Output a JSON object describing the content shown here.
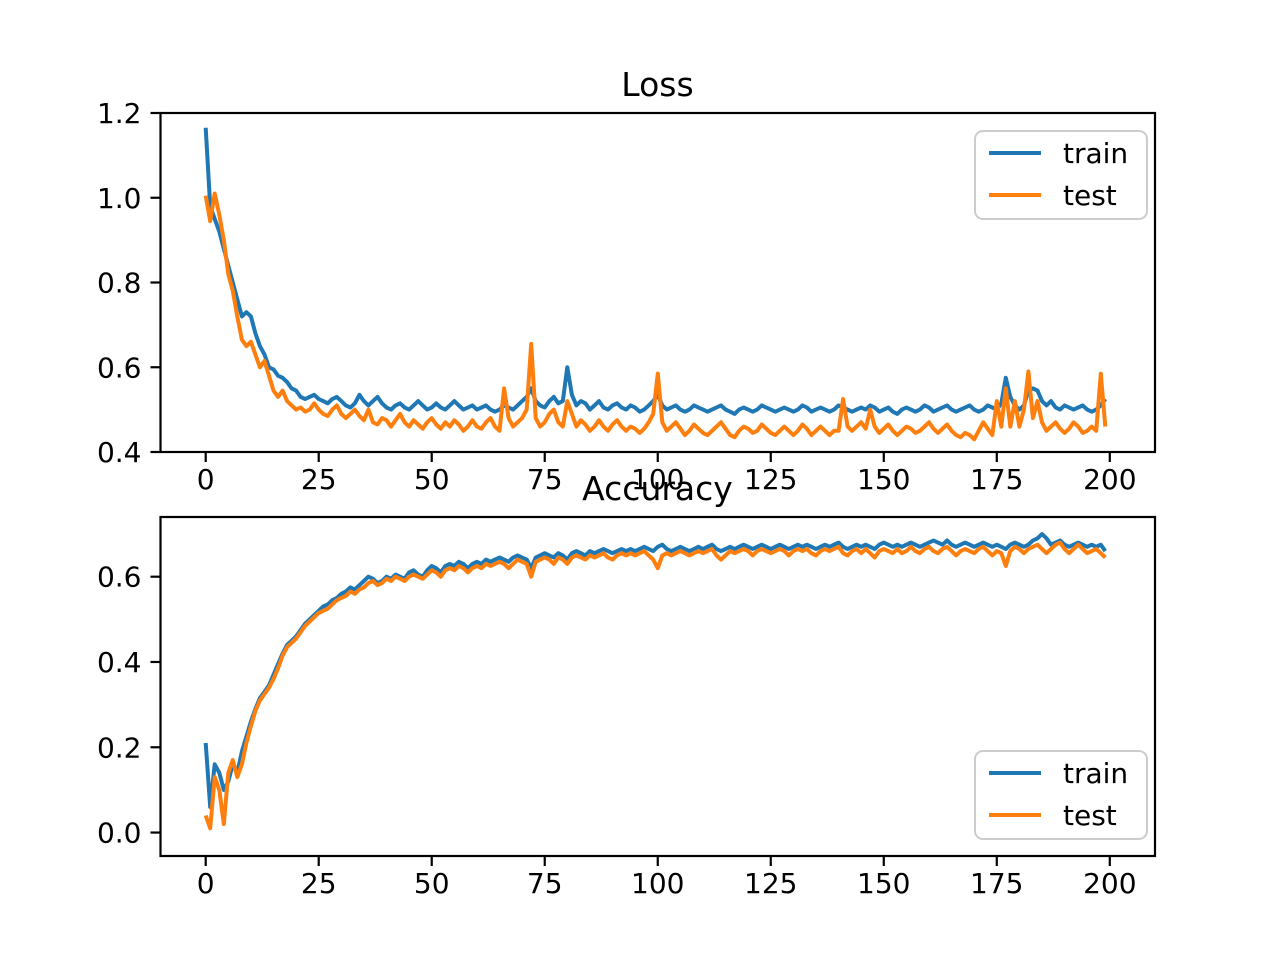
{
  "figure": {
    "background": "#ffffff",
    "axis_color": "#000000",
    "legend_border_color": "#cccccc"
  },
  "chart_data": [
    {
      "id": "loss",
      "type": "line",
      "title": "Loss",
      "xlabel": "",
      "ylabel": "",
      "grid": false,
      "xlim": [
        -10,
        210
      ],
      "ylim": [
        0.4,
        1.2
      ],
      "xticks": [
        0,
        25,
        50,
        75,
        100,
        125,
        150,
        175,
        200
      ],
      "xtick_labels": [
        "0",
        "25",
        "50",
        "75",
        "100",
        "125",
        "150",
        "175",
        "200"
      ],
      "yticks": [
        0.4,
        0.6,
        0.8,
        1.0,
        1.2
      ],
      "ytick_labels": [
        "0.4",
        "0.6",
        "0.8",
        "1.0",
        "1.2"
      ],
      "x_start": 0,
      "x_step": 1,
      "n_points": 200,
      "legend": {
        "location": "upper right",
        "entries": [
          "train",
          "test"
        ]
      },
      "series": [
        {
          "name": "train",
          "color": "#1f77b4",
          "values": [
            1.165,
            0.98,
            0.95,
            0.92,
            0.88,
            0.84,
            0.8,
            0.76,
            0.72,
            0.73,
            0.72,
            0.68,
            0.65,
            0.63,
            0.6,
            0.595,
            0.58,
            0.575,
            0.565,
            0.55,
            0.545,
            0.53,
            0.525,
            0.53,
            0.535,
            0.525,
            0.52,
            0.515,
            0.525,
            0.53,
            0.52,
            0.51,
            0.505,
            0.515,
            0.535,
            0.52,
            0.51,
            0.52,
            0.53,
            0.515,
            0.505,
            0.5,
            0.51,
            0.515,
            0.505,
            0.5,
            0.51,
            0.52,
            0.51,
            0.5,
            0.505,
            0.515,
            0.505,
            0.5,
            0.51,
            0.52,
            0.51,
            0.5,
            0.505,
            0.51,
            0.5,
            0.505,
            0.51,
            0.5,
            0.495,
            0.5,
            0.51,
            0.505,
            0.5,
            0.51,
            0.52,
            0.53,
            0.55,
            0.52,
            0.51,
            0.505,
            0.52,
            0.53,
            0.515,
            0.52,
            0.6,
            0.535,
            0.51,
            0.52,
            0.515,
            0.5,
            0.51,
            0.52,
            0.505,
            0.5,
            0.51,
            0.515,
            0.505,
            0.5,
            0.51,
            0.505,
            0.495,
            0.5,
            0.51,
            0.52,
            0.535,
            0.51,
            0.5,
            0.505,
            0.51,
            0.5,
            0.495,
            0.5,
            0.51,
            0.505,
            0.5,
            0.495,
            0.5,
            0.505,
            0.51,
            0.5,
            0.495,
            0.49,
            0.5,
            0.505,
            0.5,
            0.495,
            0.5,
            0.51,
            0.505,
            0.5,
            0.495,
            0.5,
            0.505,
            0.5,
            0.495,
            0.5,
            0.51,
            0.505,
            0.495,
            0.5,
            0.505,
            0.5,
            0.495,
            0.5,
            0.51,
            0.505,
            0.5,
            0.495,
            0.5,
            0.505,
            0.5,
            0.51,
            0.505,
            0.495,
            0.5,
            0.505,
            0.495,
            0.49,
            0.5,
            0.505,
            0.5,
            0.495,
            0.5,
            0.51,
            0.505,
            0.495,
            0.5,
            0.505,
            0.51,
            0.5,
            0.495,
            0.5,
            0.505,
            0.51,
            0.5,
            0.495,
            0.5,
            0.51,
            0.505,
            0.5,
            0.515,
            0.575,
            0.53,
            0.51,
            0.5,
            0.51,
            0.545,
            0.55,
            0.545,
            0.52,
            0.51,
            0.52,
            0.505,
            0.5,
            0.51,
            0.505,
            0.5,
            0.505,
            0.51,
            0.5,
            0.495,
            0.5,
            0.51,
            0.525
          ]
        },
        {
          "name": "test",
          "color": "#ff7f0e",
          "values": [
            1.005,
            0.945,
            1.01,
            0.96,
            0.9,
            0.82,
            0.78,
            0.72,
            0.665,
            0.65,
            0.66,
            0.63,
            0.6,
            0.615,
            0.58,
            0.545,
            0.53,
            0.545,
            0.52,
            0.51,
            0.5,
            0.505,
            0.495,
            0.5,
            0.515,
            0.5,
            0.49,
            0.485,
            0.5,
            0.51,
            0.49,
            0.48,
            0.49,
            0.5,
            0.485,
            0.475,
            0.5,
            0.47,
            0.465,
            0.48,
            0.475,
            0.46,
            0.475,
            0.49,
            0.47,
            0.46,
            0.475,
            0.465,
            0.455,
            0.47,
            0.48,
            0.465,
            0.455,
            0.47,
            0.46,
            0.475,
            0.465,
            0.45,
            0.46,
            0.475,
            0.46,
            0.455,
            0.47,
            0.48,
            0.46,
            0.45,
            0.55,
            0.48,
            0.46,
            0.47,
            0.48,
            0.5,
            0.655,
            0.48,
            0.46,
            0.47,
            0.49,
            0.5,
            0.47,
            0.46,
            0.52,
            0.49,
            0.46,
            0.475,
            0.465,
            0.45,
            0.46,
            0.475,
            0.46,
            0.45,
            0.465,
            0.475,
            0.46,
            0.45,
            0.46,
            0.455,
            0.445,
            0.455,
            0.47,
            0.49,
            0.585,
            0.47,
            0.45,
            0.46,
            0.47,
            0.455,
            0.44,
            0.45,
            0.465,
            0.455,
            0.445,
            0.44,
            0.45,
            0.46,
            0.47,
            0.455,
            0.44,
            0.435,
            0.45,
            0.46,
            0.455,
            0.445,
            0.45,
            0.465,
            0.455,
            0.445,
            0.44,
            0.45,
            0.46,
            0.45,
            0.44,
            0.45,
            0.465,
            0.455,
            0.44,
            0.45,
            0.46,
            0.45,
            0.44,
            0.45,
            0.45,
            0.525,
            0.46,
            0.45,
            0.46,
            0.47,
            0.455,
            0.5,
            0.46,
            0.445,
            0.455,
            0.465,
            0.45,
            0.44,
            0.45,
            0.46,
            0.455,
            0.445,
            0.45,
            0.46,
            0.47,
            0.455,
            0.445,
            0.455,
            0.465,
            0.45,
            0.44,
            0.435,
            0.445,
            0.44,
            0.43,
            0.45,
            0.47,
            0.455,
            0.44,
            0.52,
            0.46,
            0.55,
            0.46,
            0.52,
            0.46,
            0.5,
            0.59,
            0.48,
            0.52,
            0.47,
            0.45,
            0.46,
            0.47,
            0.455,
            0.445,
            0.455,
            0.47,
            0.46,
            0.445,
            0.45,
            0.46,
            0.45,
            0.585,
            0.46
          ]
        }
      ]
    },
    {
      "id": "accuracy",
      "type": "line",
      "title": "Accuracy",
      "xlabel": "",
      "ylabel": "",
      "grid": false,
      "xlim": [
        -10,
        210
      ],
      "ylim": [
        -0.055,
        0.74
      ],
      "xticks": [
        0,
        25,
        50,
        75,
        100,
        125,
        150,
        175,
        200
      ],
      "xtick_labels": [
        "0",
        "25",
        "50",
        "75",
        "100",
        "125",
        "150",
        "175",
        "200"
      ],
      "yticks": [
        0.0,
        0.2,
        0.4,
        0.6
      ],
      "ytick_labels": [
        "0.0",
        "0.2",
        "0.4",
        "0.6"
      ],
      "x_start": 0,
      "x_step": 1,
      "n_points": 200,
      "legend": {
        "location": "lower right",
        "entries": [
          "train",
          "test"
        ]
      },
      "series": [
        {
          "name": "train",
          "color": "#1f77b4",
          "values": [
            0.21,
            0.06,
            0.16,
            0.14,
            0.1,
            0.12,
            0.16,
            0.14,
            0.19,
            0.225,
            0.26,
            0.29,
            0.315,
            0.33,
            0.345,
            0.37,
            0.395,
            0.42,
            0.44,
            0.45,
            0.46,
            0.475,
            0.49,
            0.5,
            0.51,
            0.52,
            0.53,
            0.535,
            0.545,
            0.55,
            0.56,
            0.565,
            0.575,
            0.57,
            0.58,
            0.59,
            0.6,
            0.595,
            0.585,
            0.59,
            0.6,
            0.595,
            0.605,
            0.6,
            0.595,
            0.61,
            0.615,
            0.605,
            0.6,
            0.615,
            0.625,
            0.62,
            0.61,
            0.625,
            0.63,
            0.625,
            0.635,
            0.63,
            0.62,
            0.63,
            0.635,
            0.63,
            0.64,
            0.635,
            0.64,
            0.645,
            0.64,
            0.635,
            0.645,
            0.65,
            0.645,
            0.64,
            0.62,
            0.645,
            0.65,
            0.655,
            0.65,
            0.645,
            0.655,
            0.65,
            0.64,
            0.655,
            0.66,
            0.655,
            0.65,
            0.66,
            0.655,
            0.66,
            0.665,
            0.66,
            0.655,
            0.66,
            0.665,
            0.66,
            0.665,
            0.66,
            0.665,
            0.67,
            0.665,
            0.66,
            0.67,
            0.675,
            0.665,
            0.66,
            0.665,
            0.67,
            0.665,
            0.66,
            0.665,
            0.67,
            0.665,
            0.67,
            0.675,
            0.665,
            0.66,
            0.665,
            0.67,
            0.665,
            0.67,
            0.675,
            0.67,
            0.665,
            0.67,
            0.675,
            0.67,
            0.665,
            0.67,
            0.675,
            0.67,
            0.665,
            0.67,
            0.675,
            0.67,
            0.675,
            0.67,
            0.665,
            0.67,
            0.675,
            0.67,
            0.675,
            0.68,
            0.67,
            0.665,
            0.67,
            0.675,
            0.67,
            0.675,
            0.67,
            0.665,
            0.675,
            0.68,
            0.675,
            0.67,
            0.675,
            0.67,
            0.675,
            0.68,
            0.675,
            0.67,
            0.675,
            0.68,
            0.685,
            0.68,
            0.675,
            0.685,
            0.675,
            0.67,
            0.675,
            0.68,
            0.675,
            0.67,
            0.675,
            0.68,
            0.675,
            0.67,
            0.675,
            0.67,
            0.665,
            0.675,
            0.68,
            0.675,
            0.67,
            0.675,
            0.685,
            0.69,
            0.7,
            0.69,
            0.675,
            0.68,
            0.685,
            0.675,
            0.67,
            0.675,
            0.68,
            0.675,
            0.67,
            0.675,
            0.67,
            0.675,
            0.66
          ]
        },
        {
          "name": "test",
          "color": "#ff7f0e",
          "values": [
            0.04,
            0.01,
            0.13,
            0.1,
            0.02,
            0.14,
            0.17,
            0.13,
            0.16,
            0.21,
            0.25,
            0.285,
            0.31,
            0.325,
            0.34,
            0.36,
            0.385,
            0.415,
            0.435,
            0.445,
            0.455,
            0.47,
            0.485,
            0.495,
            0.505,
            0.515,
            0.52,
            0.525,
            0.535,
            0.545,
            0.55,
            0.555,
            0.565,
            0.56,
            0.57,
            0.575,
            0.585,
            0.59,
            0.58,
            0.585,
            0.595,
            0.59,
            0.6,
            0.595,
            0.59,
            0.6,
            0.605,
            0.6,
            0.595,
            0.605,
            0.615,
            0.61,
            0.6,
            0.615,
            0.62,
            0.615,
            0.625,
            0.62,
            0.61,
            0.62,
            0.625,
            0.62,
            0.63,
            0.625,
            0.63,
            0.635,
            0.63,
            0.62,
            0.63,
            0.64,
            0.635,
            0.63,
            0.6,
            0.635,
            0.64,
            0.645,
            0.64,
            0.63,
            0.645,
            0.64,
            0.63,
            0.645,
            0.65,
            0.645,
            0.64,
            0.65,
            0.645,
            0.65,
            0.655,
            0.645,
            0.64,
            0.65,
            0.655,
            0.65,
            0.655,
            0.65,
            0.655,
            0.66,
            0.65,
            0.64,
            0.62,
            0.65,
            0.655,
            0.65,
            0.655,
            0.66,
            0.655,
            0.65,
            0.655,
            0.66,
            0.655,
            0.66,
            0.665,
            0.65,
            0.64,
            0.65,
            0.66,
            0.655,
            0.66,
            0.665,
            0.66,
            0.65,
            0.66,
            0.665,
            0.66,
            0.655,
            0.66,
            0.665,
            0.66,
            0.65,
            0.66,
            0.665,
            0.66,
            0.665,
            0.655,
            0.65,
            0.66,
            0.665,
            0.66,
            0.665,
            0.67,
            0.655,
            0.65,
            0.66,
            0.665,
            0.655,
            0.665,
            0.655,
            0.645,
            0.66,
            0.665,
            0.66,
            0.655,
            0.665,
            0.655,
            0.66,
            0.67,
            0.66,
            0.655,
            0.665,
            0.67,
            0.66,
            0.655,
            0.665,
            0.67,
            0.66,
            0.65,
            0.66,
            0.665,
            0.66,
            0.655,
            0.665,
            0.67,
            0.66,
            0.65,
            0.66,
            0.655,
            0.625,
            0.66,
            0.67,
            0.665,
            0.655,
            0.665,
            0.67,
            0.675,
            0.665,
            0.655,
            0.665,
            0.675,
            0.68,
            0.665,
            0.655,
            0.665,
            0.675,
            0.665,
            0.655,
            0.66,
            0.665,
            0.655,
            0.645
          ]
        }
      ]
    }
  ]
}
